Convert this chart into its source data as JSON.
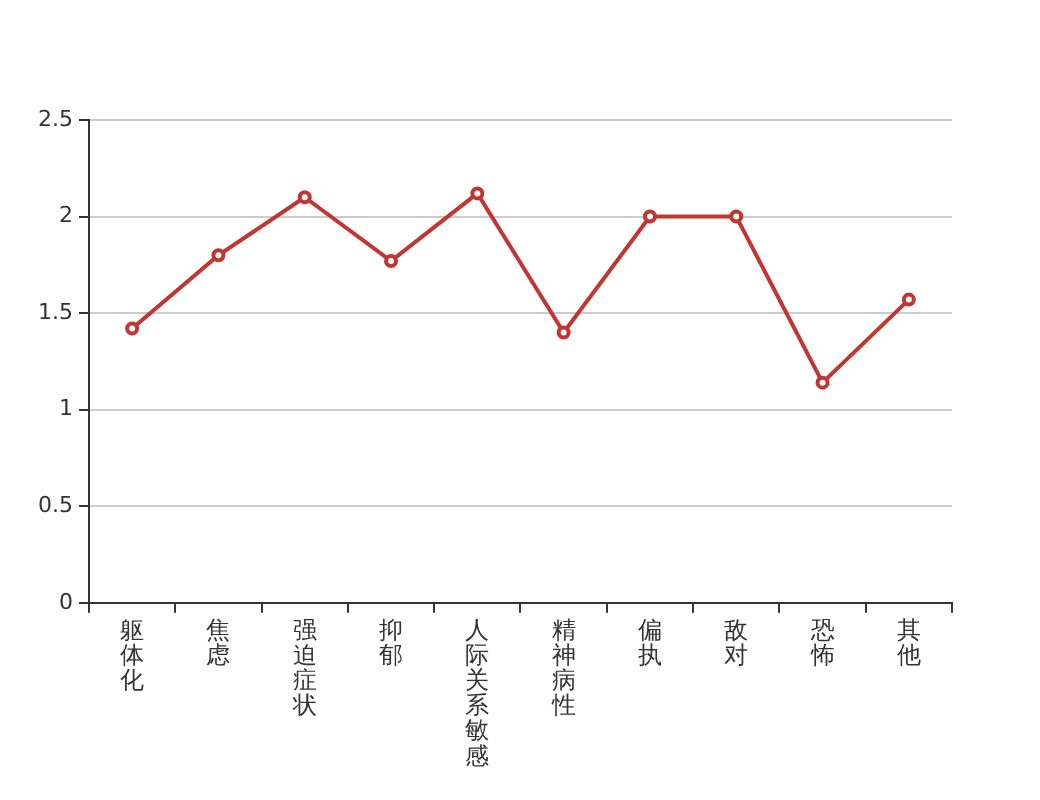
{
  "chart_data": {
    "type": "line",
    "categories": [
      "躯体化",
      "焦虑",
      "强迫症状",
      "抑郁",
      "人际关系敏感",
      "精神病性",
      "偏执",
      "敌对",
      "恐怖",
      "其他"
    ],
    "series": [
      {
        "color": "#c23531",
        "values": [
          1.42,
          1.8,
          2.1,
          1.77,
          2.12,
          1.4,
          2.0,
          2.0,
          1.14,
          1.57
        ]
      }
    ],
    "ylim": [
      0,
      2.5
    ],
    "yticks": [
      0,
      0.5,
      1,
      1.5,
      2,
      2.5
    ],
    "grid": "y",
    "marker": "circle",
    "legend": false
  }
}
